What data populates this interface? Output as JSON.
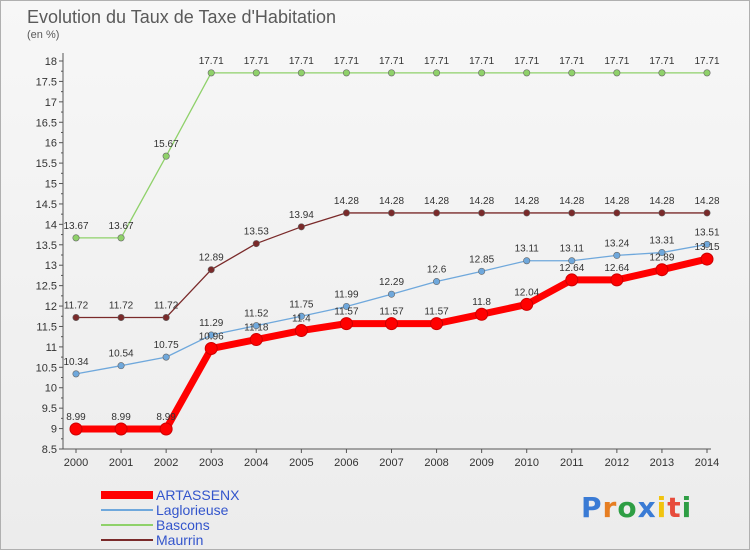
{
  "title": "Evolution du Taux de Taxe d'Habitation",
  "unit": "(en %)",
  "logo": "Proxiti",
  "chart_data": {
    "type": "line",
    "title": "Evolution du Taux de Taxe d'Habitation",
    "ylabel": "(en %)",
    "xlabel": "",
    "x": [
      "2000",
      "2001",
      "2002",
      "2003",
      "2004",
      "2005",
      "2006",
      "2007",
      "2008",
      "2009",
      "2010",
      "2011",
      "2012",
      "2013",
      "2014"
    ],
    "ylim": [
      8.5,
      18
    ],
    "yticks": [
      "8.5",
      "9",
      "9.5",
      "10",
      "10.5",
      "11",
      "11.5",
      "12",
      "12.5",
      "13",
      "13.5",
      "14",
      "14.5",
      "15",
      "15.5",
      "16",
      "16.5",
      "17",
      "17.5",
      "18"
    ],
    "grid": false,
    "legend_position": "bottom-left",
    "series": [
      {
        "name": "ARTASSENX",
        "color": "#ff0000",
        "values": [
          8.99,
          8.99,
          8.99,
          10.96,
          11.18,
          11.4,
          11.57,
          11.57,
          11.57,
          11.8,
          12.04,
          12.64,
          12.64,
          12.89,
          13.15
        ]
      },
      {
        "name": "Laglorieuse",
        "color": "#6fa8dc",
        "values": [
          10.34,
          10.54,
          10.75,
          11.29,
          11.52,
          11.75,
          11.99,
          12.29,
          12.6,
          12.85,
          13.11,
          13.11,
          13.24,
          13.31,
          13.51
        ]
      },
      {
        "name": "Bascons",
        "color": "#8fd16a",
        "values": [
          13.67,
          13.67,
          15.67,
          17.71,
          17.71,
          17.71,
          17.71,
          17.71,
          17.71,
          17.71,
          17.71,
          17.71,
          17.71,
          17.71,
          17.71
        ]
      },
      {
        "name": "Maurrin",
        "color": "#7a2a2a",
        "values": [
          11.72,
          11.72,
          11.72,
          12.89,
          13.53,
          13.94,
          14.28,
          14.28,
          14.28,
          14.28,
          14.28,
          14.28,
          14.28,
          14.28,
          14.28
        ]
      }
    ]
  }
}
